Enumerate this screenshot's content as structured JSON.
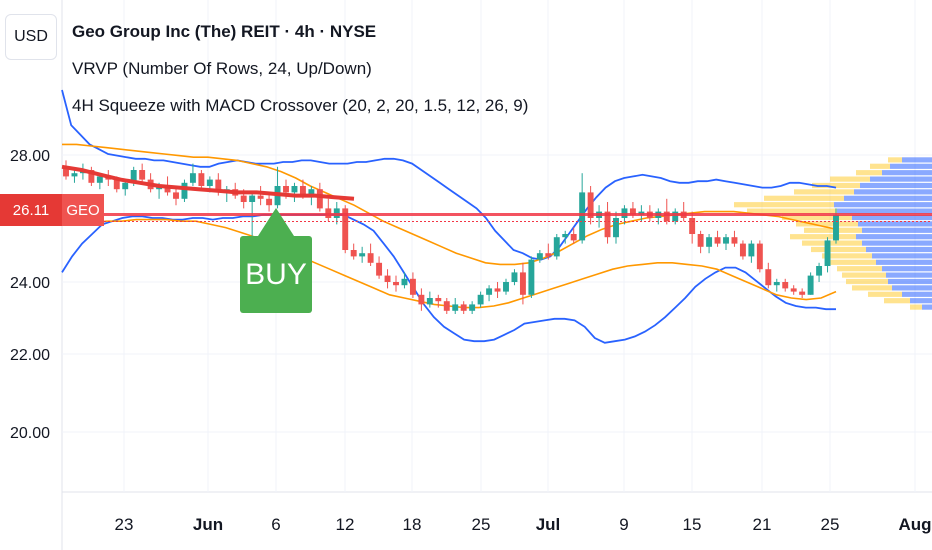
{
  "header": {
    "currency_button": "USD",
    "title": "Geo Group Inc (The) REIT · 4h · NYSE",
    "indicator_vrvp": "VRVP (Number Of Rows, 24, Up/Down)",
    "indicator_squeeze": "4H Squeeze with MACD Crossover (20, 2, 20, 1.5, 12, 26, 9)"
  },
  "price_tag": {
    "value": "26.11",
    "symbol": "GEO"
  },
  "signal": {
    "label": "BUY",
    "color": "#4caf50"
  },
  "colors": {
    "up": "#26a69a",
    "down": "#ef5350",
    "bollinger": "#2962ff",
    "keltner": "#ff9800",
    "ma": "#e53935",
    "price_line": "#f23645",
    "vp_up": "#2962ff",
    "vp_down": "#ffc107"
  },
  "chart_data": {
    "type": "candlestick",
    "y_ticks": [
      "28.00",
      "24.00",
      "22.00",
      "20.00"
    ],
    "y_tick_values": [
      28,
      24,
      22,
      20
    ],
    "x_ticks": [
      "23",
      "Jun",
      "6",
      "12",
      "18",
      "25",
      "Jul",
      "9",
      "15",
      "21",
      "25",
      "Aug"
    ],
    "current_price": 26.11,
    "candles": [
      [
        27.6,
        27.8,
        27.2,
        27.3
      ],
      [
        27.3,
        27.5,
        27.1,
        27.4
      ],
      [
        27.4,
        27.7,
        27.2,
        27.5
      ],
      [
        27.5,
        27.6,
        27.0,
        27.1
      ],
      [
        27.1,
        27.4,
        26.9,
        27.3
      ],
      [
        27.3,
        27.5,
        27.0,
        27.2
      ],
      [
        27.2,
        27.3,
        26.8,
        26.9
      ],
      [
        26.9,
        27.2,
        26.7,
        27.1
      ],
      [
        27.1,
        27.6,
        27.0,
        27.5
      ],
      [
        27.5,
        27.7,
        27.1,
        27.2
      ],
      [
        27.2,
        27.4,
        26.8,
        26.9
      ],
      [
        26.9,
        27.1,
        26.6,
        27.0
      ],
      [
        27.0,
        27.3,
        26.7,
        26.8
      ],
      [
        26.8,
        27.0,
        26.4,
        26.6
      ],
      [
        26.6,
        27.2,
        26.5,
        27.1
      ],
      [
        27.1,
        27.7,
        27.0,
        27.4
      ],
      [
        27.4,
        27.5,
        26.9,
        27.0
      ],
      [
        27.0,
        27.3,
        26.8,
        27.2
      ],
      [
        27.2,
        27.4,
        26.7,
        26.8
      ],
      [
        26.8,
        27.0,
        26.5,
        26.9
      ],
      [
        26.9,
        27.1,
        26.6,
        26.7
      ],
      [
        26.7,
        26.9,
        26.3,
        26.5
      ],
      [
        26.5,
        26.8,
        25.4,
        26.7
      ],
      [
        26.7,
        27.0,
        26.4,
        26.6
      ],
      [
        26.6,
        26.8,
        26.2,
        26.4
      ],
      [
        26.4,
        27.6,
        26.3,
        27.0
      ],
      [
        27.0,
        27.2,
        26.6,
        26.8
      ],
      [
        26.8,
        27.1,
        26.5,
        27.0
      ],
      [
        27.0,
        27.2,
        26.6,
        26.7
      ],
      [
        26.7,
        27.0,
        26.4,
        26.9
      ],
      [
        26.9,
        27.1,
        26.2,
        26.3
      ],
      [
        26.3,
        26.6,
        25.9,
        26.0
      ],
      [
        26.0,
        26.5,
        25.8,
        26.3
      ],
      [
        26.3,
        26.4,
        24.9,
        25.0
      ],
      [
        25.0,
        25.2,
        24.7,
        24.8
      ],
      [
        24.8,
        25.1,
        24.6,
        24.9
      ],
      [
        24.9,
        25.2,
        24.5,
        24.6
      ],
      [
        24.6,
        24.8,
        24.1,
        24.2
      ],
      [
        24.2,
        24.4,
        23.8,
        24.0
      ],
      [
        24.0,
        24.2,
        23.7,
        23.9
      ],
      [
        23.9,
        24.3,
        23.8,
        24.1
      ],
      [
        24.1,
        24.3,
        23.5,
        23.6
      ],
      [
        23.6,
        23.8,
        23.1,
        23.3
      ],
      [
        23.3,
        23.7,
        23.2,
        23.5
      ],
      [
        23.5,
        23.6,
        23.2,
        23.4
      ],
      [
        23.4,
        23.5,
        23.0,
        23.1
      ],
      [
        23.1,
        23.5,
        23.0,
        23.3
      ],
      [
        23.3,
        23.4,
        23.0,
        23.1
      ],
      [
        23.1,
        23.4,
        23.0,
        23.3
      ],
      [
        23.3,
        23.7,
        23.2,
        23.6
      ],
      [
        23.6,
        23.9,
        23.4,
        23.8
      ],
      [
        23.8,
        24.0,
        23.5,
        23.7
      ],
      [
        23.7,
        24.1,
        23.6,
        24.0
      ],
      [
        24.0,
        24.4,
        23.9,
        24.3
      ],
      [
        24.3,
        24.6,
        23.3,
        23.6
      ],
      [
        23.6,
        24.8,
        23.5,
        24.7
      ],
      [
        24.7,
        25.0,
        24.6,
        24.9
      ],
      [
        24.9,
        25.2,
        24.7,
        24.8
      ],
      [
        24.8,
        25.5,
        24.7,
        25.4
      ],
      [
        25.4,
        25.6,
        25.2,
        25.5
      ],
      [
        25.5,
        25.7,
        25.2,
        25.3
      ],
      [
        25.3,
        27.4,
        25.2,
        26.8
      ],
      [
        26.8,
        27.0,
        25.8,
        26.0
      ],
      [
        26.0,
        26.4,
        25.7,
        26.2
      ],
      [
        26.2,
        26.5,
        25.2,
        25.4
      ],
      [
        25.4,
        26.2,
        25.2,
        26.0
      ],
      [
        26.0,
        26.4,
        25.8,
        26.3
      ],
      [
        26.3,
        26.5,
        26.0,
        26.1
      ],
      [
        26.1,
        26.4,
        25.9,
        26.2
      ],
      [
        26.2,
        26.4,
        25.9,
        26.0
      ],
      [
        26.0,
        26.3,
        25.8,
        26.2
      ],
      [
        26.2,
        26.6,
        25.8,
        25.9
      ],
      [
        25.9,
        26.3,
        25.8,
        26.2
      ],
      [
        26.2,
        26.5,
        25.9,
        26.0
      ],
      [
        26.0,
        26.2,
        25.2,
        25.5
      ],
      [
        25.5,
        25.6,
        24.9,
        25.1
      ],
      [
        25.1,
        25.5,
        24.9,
        25.4
      ],
      [
        25.4,
        25.6,
        25.1,
        25.2
      ],
      [
        25.2,
        25.5,
        25.0,
        25.4
      ],
      [
        25.4,
        25.6,
        25.1,
        25.2
      ],
      [
        25.2,
        25.3,
        24.7,
        24.8
      ],
      [
        24.8,
        25.3,
        24.6,
        25.2
      ],
      [
        25.2,
        25.3,
        24.3,
        24.4
      ],
      [
        24.4,
        24.6,
        23.8,
        23.9
      ],
      [
        23.9,
        24.1,
        23.7,
        24.0
      ],
      [
        24.0,
        24.1,
        23.7,
        23.8
      ],
      [
        23.8,
        23.9,
        23.6,
        23.7
      ],
      [
        23.7,
        23.8,
        23.5,
        23.6
      ],
      [
        23.6,
        24.3,
        23.6,
        24.2
      ],
      [
        24.2,
        24.6,
        24.0,
        24.5
      ],
      [
        24.5,
        25.4,
        24.3,
        25.3
      ],
      [
        25.3,
        26.3,
        25.2,
        26.1
      ]
    ],
    "bollinger_upper": [
      30.0,
      28.9,
      28.6,
      28.3,
      28.15,
      28.0,
      27.95,
      27.9,
      27.85,
      27.85,
      27.8,
      27.8,
      27.75,
      27.7,
      27.65,
      27.6,
      27.6,
      27.7,
      27.75,
      27.8,
      27.75,
      27.7,
      27.7,
      27.7,
      27.75,
      27.75,
      27.8,
      27.8,
      27.75,
      27.7,
      27.7,
      27.7,
      27.75,
      27.75,
      27.8,
      27.85,
      27.85,
      27.8,
      27.7,
      27.5,
      27.3,
      27.1,
      26.9,
      26.7,
      26.5,
      26.3,
      26.0,
      25.6,
      25.3,
      25.0,
      24.9,
      24.75,
      24.7,
      24.8,
      25.1,
      25.5,
      25.9,
      26.3,
      26.65,
      26.95,
      27.15,
      27.25,
      27.3,
      27.35,
      27.3,
      27.25,
      27.15,
      27.1,
      27.1,
      27.15,
      27.15,
      27.2,
      27.15,
      27.1,
      27.05,
      27.0,
      26.95,
      26.95,
      27.0,
      27.1,
      27.1,
      27.05,
      27.0,
      27.0,
      26.95
    ],
    "bollinger_lower": [
      24.3,
      24.8,
      25.2,
      25.5,
      25.8,
      25.9,
      26.0,
      26.05,
      26.05,
      26.0,
      26.0,
      25.95,
      25.95,
      26.0,
      26.0,
      25.95,
      26.0,
      26.0,
      26.05,
      26.05,
      26.1,
      26.1,
      26.1,
      26.1,
      26.1,
      26.1,
      26.1,
      26.1,
      26.1,
      25.95,
      25.8,
      25.6,
      25.2,
      24.8,
      24.3,
      23.8,
      23.3,
      22.9,
      22.6,
      22.4,
      22.2,
      22.15,
      22.15,
      22.2,
      22.35,
      22.5,
      22.7,
      22.75,
      22.8,
      22.85,
      22.85,
      22.8,
      22.6,
      22.25,
      22.1,
      22.15,
      22.2,
      22.3,
      22.45,
      22.65,
      22.9,
      23.2,
      23.5,
      23.85,
      24.1,
      24.3,
      24.45,
      24.45,
      24.3,
      24.05,
      23.8,
      23.55,
      23.35,
      23.25,
      23.2,
      23.2,
      23.15,
      23.15
    ],
    "keltner_upper": [
      28.3,
      28.3,
      28.25,
      28.2,
      28.15,
      28.1,
      28.05,
      28.0,
      27.95,
      27.9,
      27.9,
      27.85,
      27.8,
      27.7,
      27.6,
      27.45,
      27.25,
      27.0,
      26.8,
      26.6,
      26.4,
      26.15,
      25.9,
      25.7,
      25.5,
      25.3,
      25.1,
      24.9,
      24.75,
      24.6,
      24.55,
      24.55,
      24.6,
      24.75,
      24.95,
      25.2,
      25.45,
      25.65,
      25.8,
      25.9,
      26.0,
      26.05,
      26.1,
      26.15,
      26.2,
      26.2,
      26.2,
      26.15,
      26.1,
      26.05,
      25.95,
      25.85,
      25.75,
      25.65
    ],
    "keltner_lower": [
      25.9,
      25.85,
      25.85,
      25.9,
      25.9,
      25.95,
      25.95,
      25.95,
      25.9,
      25.9,
      25.8,
      25.7,
      25.55,
      25.4,
      25.2,
      25.0,
      24.8,
      24.6,
      24.4,
      24.2,
      24.0,
      23.8,
      23.6,
      23.5,
      23.4,
      23.3,
      23.25,
      23.2,
      23.2,
      23.25,
      23.35,
      23.5,
      23.65,
      23.8,
      23.95,
      24.1,
      24.25,
      24.4,
      24.5,
      24.55,
      24.6,
      24.6,
      24.55,
      24.5,
      24.4,
      24.2,
      24.0,
      23.8,
      23.6,
      23.5,
      23.45,
      23.5,
      23.7
    ],
    "ma_segment": [
      27.6,
      27.5,
      27.35,
      27.2,
      27.1,
      27.0,
      26.95,
      26.9,
      26.85,
      26.8,
      26.8,
      26.75,
      26.7,
      26.7,
      26.65,
      26.6
    ],
    "volume_profile": [
      {
        "price": 27.8,
        "up": 0.3,
        "down": 0.14
      },
      {
        "price": 27.6,
        "up": 0.42,
        "down": 0.2
      },
      {
        "price": 27.4,
        "up": 0.5,
        "down": 0.26
      },
      {
        "price": 27.2,
        "up": 0.62,
        "down": 0.4
      },
      {
        "price": 27.0,
        "up": 0.72,
        "down": 0.48
      },
      {
        "price": 26.8,
        "up": 0.78,
        "down": 0.6
      },
      {
        "price": 26.6,
        "up": 0.88,
        "down": 0.8
      },
      {
        "price": 26.4,
        "up": 0.98,
        "down": 1.0
      },
      {
        "price": 26.2,
        "up": 0.95,
        "down": 0.9
      },
      {
        "price": 26.0,
        "up": 0.8,
        "down": 0.7
      },
      {
        "price": 25.8,
        "up": 0.74,
        "down": 0.62
      },
      {
        "price": 25.6,
        "up": 0.7,
        "down": 0.58
      },
      {
        "price": 25.4,
        "up": 0.76,
        "down": 0.66
      },
      {
        "price": 25.2,
        "up": 0.7,
        "down": 0.6
      },
      {
        "price": 25.0,
        "up": 0.66,
        "down": 0.55
      },
      {
        "price": 24.8,
        "up": 0.6,
        "down": 0.5
      },
      {
        "price": 24.6,
        "up": 0.56,
        "down": 0.48
      },
      {
        "price": 24.4,
        "up": 0.5,
        "down": 0.45
      },
      {
        "price": 24.2,
        "up": 0.46,
        "down": 0.44
      },
      {
        "price": 24.0,
        "up": 0.44,
        "down": 0.42
      },
      {
        "price": 23.8,
        "up": 0.4,
        "down": 0.4
      },
      {
        "price": 23.6,
        "up": 0.3,
        "down": 0.34
      },
      {
        "price": 23.4,
        "up": 0.22,
        "down": 0.26
      },
      {
        "price": 23.2,
        "up": 0.1,
        "down": 0.12
      }
    ]
  }
}
